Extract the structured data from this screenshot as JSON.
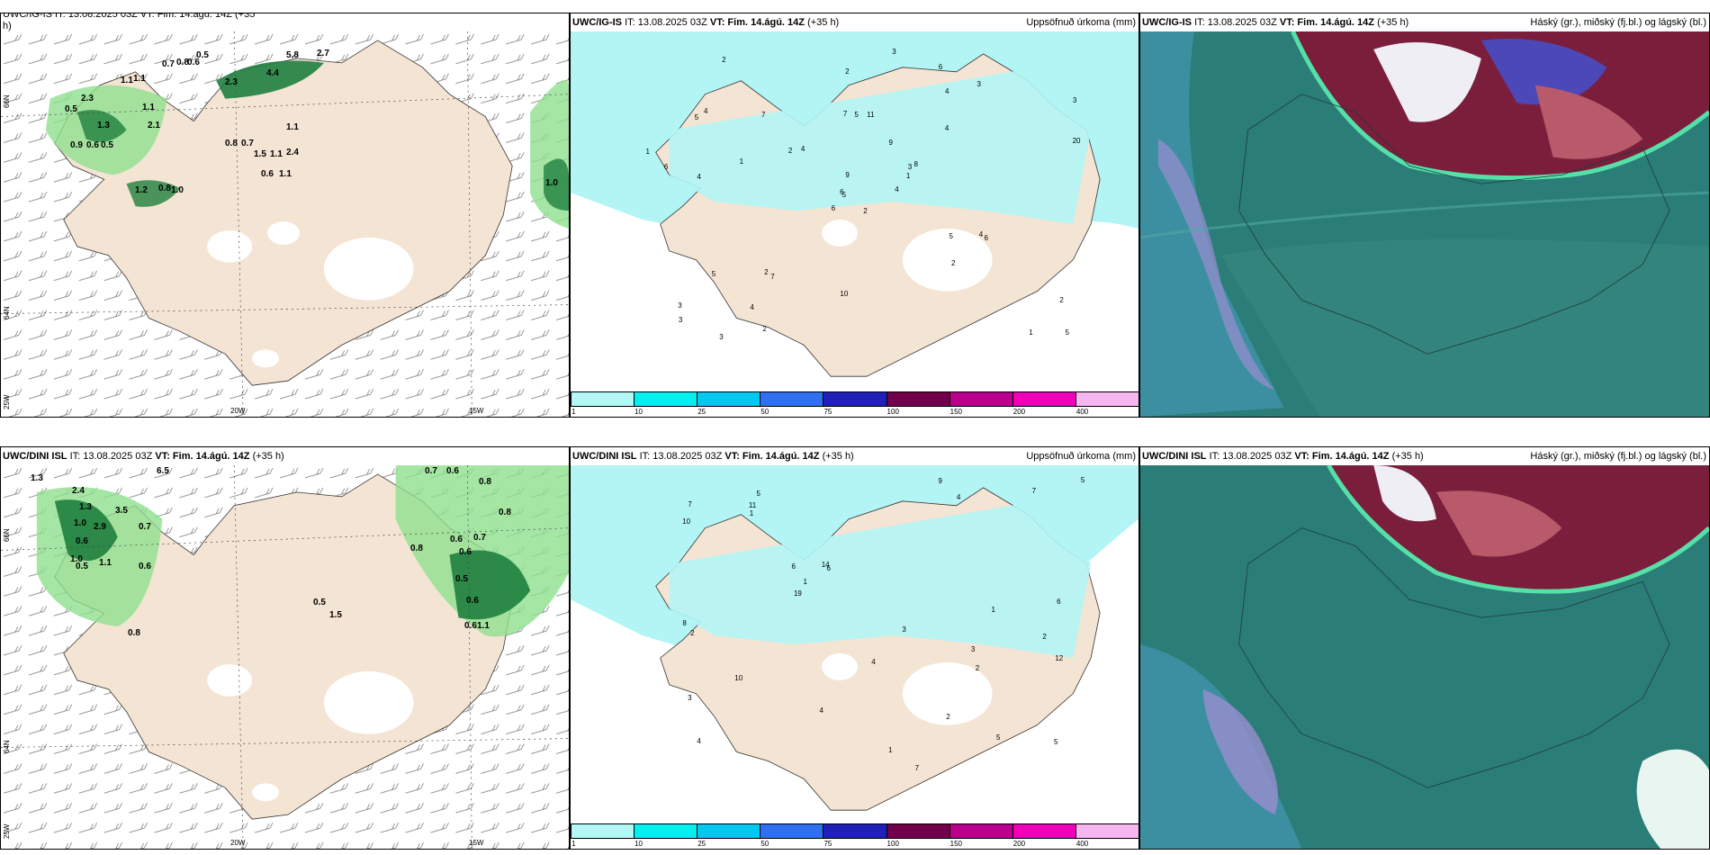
{
  "colors": {
    "land": "#f4e4d3",
    "precip_light": "#b3f5f5",
    "wind_green": "#8fe08f",
    "dark_green": "#1f7f3f",
    "teal_overlay": "#2d8f7f"
  },
  "rows": [
    {
      "model": "UWC/IG-IS",
      "it": "IT: 13.08.2025 03Z",
      "vt": "VT: Fim. 14.ágú. 14Z",
      "lead": "(+35 h)",
      "wind_header_partial": "UWC/IG-IS IT: 13.08.2025 03Z VT: Fim. 14.ágú. 14Z (+35",
      "wind_header_line2": "h)",
      "wind_values": [
        "5.8",
        "2.7",
        "0.5",
        "0.7",
        "0.8",
        "0.6",
        "4.4",
        "2.3",
        "0.5",
        "2.3",
        "1.1",
        "1.1",
        "1.1",
        "1.1",
        "1.3",
        "2.1",
        "0.9",
        "0.6",
        "0.5",
        "0.8",
        "0.7",
        "1.5",
        "1.1",
        "2.4",
        "0.6",
        "1.1",
        "1.2",
        "0.8",
        "1.0",
        "1.0"
      ],
      "precip_values": [
        "2",
        "5",
        "5",
        "3",
        "3",
        "7",
        "6",
        "11",
        "4",
        "4",
        "2",
        "5",
        "4",
        "3",
        "6",
        "4",
        "3",
        "7",
        "9",
        "5",
        "4",
        "3",
        "4",
        "5",
        "8",
        "6",
        "4",
        "2",
        "6",
        "5",
        "20",
        "6",
        "10",
        "9",
        "7",
        "3",
        "2",
        "1",
        "2",
        "4",
        "3",
        "2",
        "1",
        "2",
        "2",
        "1",
        "1"
      ],
      "precip_title": "Uppsöfnuð úrkoma (mm)",
      "cloud_title": "Háský (gr.), miðský (fj.bl.) og lágský (bl.)"
    },
    {
      "model": "UWC/DINI ISL",
      "it": "IT: 13.08.2025 03Z",
      "vt": "VT: Fim. 14.ágú. 14Z",
      "lead": "(+35 h)",
      "wind_values": [
        "1.3",
        "2.4",
        "6.5",
        "0.7",
        "0.6",
        "0.8",
        "1.3",
        "3.5",
        "0.8",
        "1.0",
        "2.9",
        "0.7",
        "0.6",
        "0.7",
        "1.0",
        "0.5",
        "1.1",
        "0.6",
        "0.8",
        "0.6",
        "0.6",
        "0.5",
        "0.6",
        "0.5",
        "1.5",
        "0.6",
        "0.8",
        "1.1"
      ],
      "precip_values": [
        "3",
        "2",
        "4",
        "5",
        "6",
        "5",
        "3",
        "4",
        "6",
        "7",
        "10",
        "8",
        "7",
        "5",
        "4",
        "6",
        "4",
        "3",
        "14",
        "10",
        "5",
        "7",
        "19",
        "12",
        "9",
        "11",
        "2",
        "2",
        "1",
        "1",
        "1",
        "2",
        "1"
      ],
      "precip_title": "Uppsöfnuð úrkoma (mm)",
      "cloud_title": "Háský (gr.), miðský (fj.bl.) og lágský (bl.)"
    }
  ],
  "axes": {
    "lon1": "20W",
    "lon2": "15W",
    "lat1": "66N",
    "lat2": "64N",
    "lat3": "25W"
  },
  "legend": {
    "labels": [
      "1",
      "10",
      "25",
      "50",
      "75",
      "100",
      "150",
      "200",
      "400"
    ],
    "colors": [
      "#b3f7f7",
      "#00f0f0",
      "#00c8f0",
      "#3070f0",
      "#2020b8",
      "#70004a",
      "#b8008c",
      "#f000b8",
      "#f6b6f0"
    ]
  }
}
